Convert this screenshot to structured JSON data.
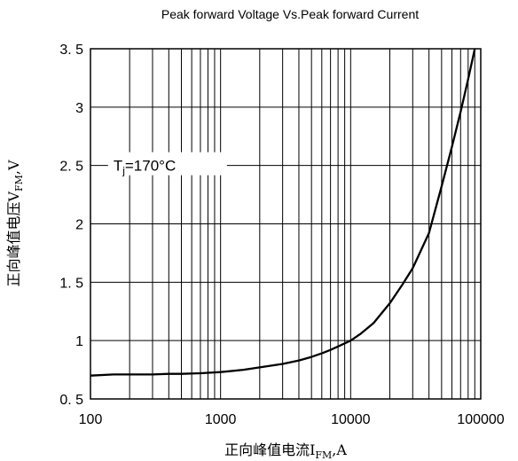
{
  "chart_data": {
    "type": "line",
    "title": "Peak forward Voltage Vs.Peak forward Current",
    "xlabel_prefix": "正向峰值电流I",
    "xlabel_sub": "FM",
    "xlabel_suffix": ",A",
    "ylabel_prefix": "正向峰值电压V",
    "ylabel_sub": "FM",
    "ylabel_suffix": ",V",
    "x_scale": "log",
    "xlim": [
      100,
      100000
    ],
    "ylim": [
      0.5,
      3.5
    ],
    "x_ticks": [
      100,
      1000,
      10000,
      100000
    ],
    "x_tick_labels": [
      "100",
      "1000",
      "10000",
      "100000"
    ],
    "y_ticks": [
      0.5,
      1,
      1.5,
      2,
      2.5,
      3,
      3.5
    ],
    "y_tick_labels": [
      "0. 5",
      "1",
      "1. 5",
      "2",
      "2. 5",
      "3",
      "3. 5"
    ],
    "grid": true,
    "annotation": {
      "prefix": "T",
      "sub": "j",
      "suffix": "=170°C",
      "x": 150,
      "y": 2.5
    },
    "series": [
      {
        "x": [
          100,
          150,
          200,
          300,
          400,
          500,
          700,
          1000,
          1500,
          2000,
          3000,
          4000,
          5000,
          6000,
          7000,
          8000,
          10000,
          12000,
          15000,
          20000,
          25000,
          30000,
          40000,
          50000,
          60000,
          70000,
          80000,
          90000
        ],
        "y": [
          0.7,
          0.71,
          0.71,
          0.71,
          0.715,
          0.715,
          0.72,
          0.73,
          0.75,
          0.77,
          0.8,
          0.83,
          0.86,
          0.89,
          0.92,
          0.95,
          1.0,
          1.06,
          1.15,
          1.32,
          1.48,
          1.62,
          1.92,
          2.32,
          2.66,
          2.96,
          3.24,
          3.5
        ]
      }
    ]
  }
}
